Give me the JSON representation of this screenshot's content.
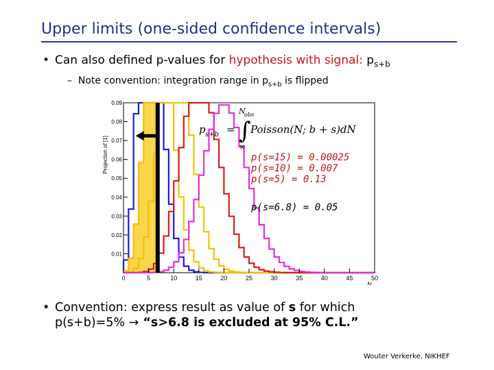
{
  "slide": {
    "title": "Upper limits (one-sided confidence intervals)",
    "bullet1": {
      "prefix": "Can also defined p-values for ",
      "highlight": "hypothesis with signal:",
      "psymbol": "p",
      "psub": "s+b"
    },
    "sub": {
      "dash": "–",
      "prefix": "Note convention: integration range in p",
      "psub": "s+b",
      "suffix": " is flipped"
    },
    "bullet2": {
      "line1": "Convention: express result as value of ",
      "bold_s": "s",
      "line1_end": " for which",
      "line2_prefix": "p(s+b)=5% ",
      "arrow": "→",
      "line2_bold": " “s>6.8 is excluded at 95% C.L.”"
    },
    "credit": "Wouter Verkerke, NIKHEF"
  },
  "chart_data": {
    "type": "histogram",
    "ylabel": "Projection of [1]",
    "xlabel": "N",
    "xlim": [
      0,
      50
    ],
    "ylim": [
      0,
      0.09
    ],
    "xticks": [
      "0",
      "5",
      "10",
      "15",
      "20",
      "25",
      "30",
      "35",
      "40",
      "45",
      "50"
    ],
    "yticks": [
      "0.01",
      "0.02",
      "0.03",
      "0.04",
      "0.05",
      "0.06",
      "0.07",
      "0.08",
      "0.09"
    ],
    "formula": {
      "lhs": "p",
      "lhs_sub": "s+b",
      "upper": "N",
      "upper_sub": "obs",
      "lower": "∞",
      "rhs": "Poisson(N; b + s)dN"
    },
    "annotations": [
      {
        "text": "p(s=15) = 0.00025",
        "color": "#c0141a"
      },
      {
        "text": "p(s=10) = 0.007",
        "color": "#c0141a"
      },
      {
        "text": "p(s=5)   = 0.13",
        "color": "#c0141a"
      },
      {
        "text": "p(s=6.8) = 0.05",
        "color": "#000000"
      }
    ],
    "cut_x": 6.8,
    "series": [
      {
        "mean": 5,
        "color": "#1a1adc",
        "fill": "none"
      },
      {
        "mean": 6.8,
        "color": "#f2c200",
        "fill": "#f7d23a"
      },
      {
        "mean": 10,
        "color": "#f2c200",
        "fill": "none"
      },
      {
        "mean": 15,
        "color": "#dc1a1a",
        "fill": "none"
      },
      {
        "mean": 20,
        "color": "#e62be6",
        "fill": "none"
      }
    ]
  }
}
